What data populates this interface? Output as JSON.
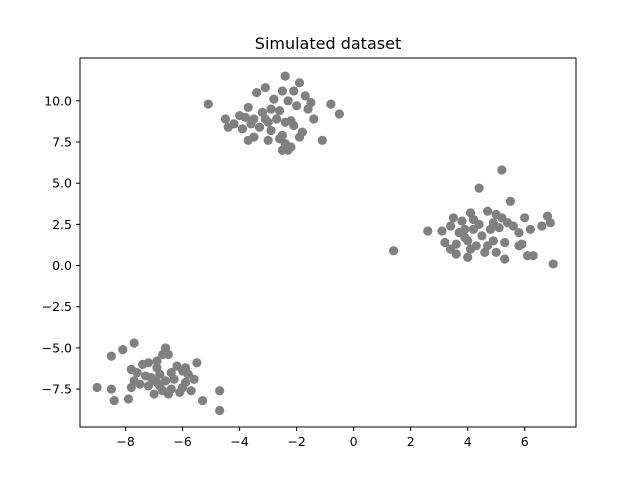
{
  "chart_data": {
    "type": "scatter",
    "title": "Simulated dataset",
    "xlabel": "",
    "ylabel": "",
    "xlim": [
      -9.6,
      7.8
    ],
    "ylim": [
      -9.8,
      12.6
    ],
    "xticks": [
      -8,
      -6,
      -4,
      -2,
      0,
      2,
      4,
      6
    ],
    "xtick_labels": [
      "−8",
      "−6",
      "−4",
      "−2",
      "0",
      "2",
      "4",
      "6"
    ],
    "yticks": [
      -7.5,
      -5.0,
      -2.5,
      0.0,
      2.5,
      5.0,
      7.5,
      10.0
    ],
    "ytick_labels": [
      "−7.5",
      "−5.0",
      "−2.5",
      "0.0",
      "2.5",
      "5.0",
      "7.5",
      "10.0"
    ],
    "grid": false,
    "marker_color": "#808080",
    "points": [
      [
        -5.1,
        9.8
      ],
      [
        -2.4,
        11.5
      ],
      [
        -1.9,
        11.1
      ],
      [
        -3.1,
        10.8
      ],
      [
        -2.5,
        10.6
      ],
      [
        -3.4,
        10.5
      ],
      [
        -2.1,
        10.6
      ],
      [
        -1.7,
        10.3
      ],
      [
        -2.8,
        10.1
      ],
      [
        -2.3,
        10.0
      ],
      [
        -1.5,
        9.9
      ],
      [
        -0.8,
        9.8
      ],
      [
        -3.7,
        9.6
      ],
      [
        -2.9,
        9.5
      ],
      [
        -2.6,
        9.4
      ],
      [
        -2.0,
        9.7
      ],
      [
        -1.6,
        9.5
      ],
      [
        -3.2,
        9.3
      ],
      [
        -0.5,
        9.2
      ],
      [
        -4.0,
        9.1
      ],
      [
        -3.8,
        9.0
      ],
      [
        -4.5,
        8.9
      ],
      [
        -3.5,
        8.9
      ],
      [
        -2.7,
        8.9
      ],
      [
        -2.2,
        8.8
      ],
      [
        -3.0,
        8.7
      ],
      [
        -2.4,
        8.7
      ],
      [
        -1.4,
        8.9
      ],
      [
        -4.2,
        8.6
      ],
      [
        -3.6,
        8.6
      ],
      [
        -2.1,
        8.5
      ],
      [
        -4.4,
        8.4
      ],
      [
        -3.9,
        8.3
      ],
      [
        -3.3,
        8.4
      ],
      [
        -2.9,
        8.2
      ],
      [
        -1.8,
        8.1
      ],
      [
        -2.5,
        7.9
      ],
      [
        -3.5,
        7.8
      ],
      [
        -2.6,
        7.7
      ],
      [
        -1.9,
        7.8
      ],
      [
        -3.0,
        7.6
      ],
      [
        -3.7,
        7.6
      ],
      [
        -1.1,
        7.6
      ],
      [
        -2.4,
        7.4
      ],
      [
        -2.2,
        7.2
      ],
      [
        -2.5,
        7.0
      ],
      [
        -2.3,
        7.0
      ],
      [
        -3.1,
        8.9
      ],
      [
        5.2,
        5.8
      ],
      [
        4.4,
        4.7
      ],
      [
        5.5,
        3.9
      ],
      [
        4.7,
        3.3
      ],
      [
        5.0,
        3.1
      ],
      [
        4.1,
        3.2
      ],
      [
        6.0,
        2.9
      ],
      [
        6.8,
        3.0
      ],
      [
        3.5,
        2.9
      ],
      [
        3.8,
        2.7
      ],
      [
        4.2,
        2.8
      ],
      [
        4.9,
        2.6
      ],
      [
        5.2,
        2.9
      ],
      [
        5.4,
        2.6
      ],
      [
        3.4,
        2.4
      ],
      [
        3.9,
        2.2
      ],
      [
        4.4,
        2.5
      ],
      [
        5.6,
        2.4
      ],
      [
        6.6,
        2.4
      ],
      [
        6.9,
        2.6
      ],
      [
        2.6,
        2.1
      ],
      [
        3.1,
        2.1
      ],
      [
        3.7,
        2.0
      ],
      [
        4.2,
        2.2
      ],
      [
        4.8,
        2.2
      ],
      [
        5.1,
        2.3
      ],
      [
        5.8,
        2.0
      ],
      [
        6.2,
        2.2
      ],
      [
        3.9,
        1.7
      ],
      [
        4.5,
        1.8
      ],
      [
        4.0,
        1.5
      ],
      [
        4.9,
        1.5
      ],
      [
        3.2,
        1.4
      ],
      [
        3.6,
        1.3
      ],
      [
        4.3,
        1.2
      ],
      [
        4.7,
        1.2
      ],
      [
        5.3,
        1.4
      ],
      [
        5.9,
        1.3
      ],
      [
        3.4,
        1.0
      ],
      [
        4.1,
        1.0
      ],
      [
        4.6,
        0.8
      ],
      [
        5.0,
        0.8
      ],
      [
        5.8,
        1.2
      ],
      [
        3.6,
        0.7
      ],
      [
        4.0,
        0.5
      ],
      [
        5.3,
        0.4
      ],
      [
        6.1,
        0.6
      ],
      [
        6.3,
        0.6
      ],
      [
        1.4,
        0.9
      ],
      [
        7.0,
        0.1
      ],
      [
        -7.7,
        -4.7
      ],
      [
        -8.1,
        -5.1
      ],
      [
        -8.5,
        -5.5
      ],
      [
        -6.6,
        -5.0
      ],
      [
        -6.5,
        -5.4
      ],
      [
        -6.7,
        -5.4
      ],
      [
        -7.2,
        -5.9
      ],
      [
        -6.9,
        -5.8
      ],
      [
        -7.4,
        -6.0
      ],
      [
        -5.5,
        -5.9
      ],
      [
        -7.8,
        -6.3
      ],
      [
        -7.6,
        -6.5
      ],
      [
        -6.9,
        -6.2
      ],
      [
        -6.2,
        -6.1
      ],
      [
        -5.9,
        -6.2
      ],
      [
        -7.3,
        -6.7
      ],
      [
        -7.1,
        -6.8
      ],
      [
        -6.8,
        -6.6
      ],
      [
        -6.4,
        -6.5
      ],
      [
        -6.0,
        -6.4
      ],
      [
        -5.8,
        -6.6
      ],
      [
        -7.7,
        -7.0
      ],
      [
        -7.5,
        -7.2
      ],
      [
        -7.0,
        -7.0
      ],
      [
        -6.6,
        -7.0
      ],
      [
        -6.3,
        -6.9
      ],
      [
        -5.9,
        -7.1
      ],
      [
        -5.6,
        -6.9
      ],
      [
        -7.8,
        -7.4
      ],
      [
        -7.2,
        -7.3
      ],
      [
        -6.8,
        -7.3
      ],
      [
        -6.4,
        -7.5
      ],
      [
        -6.0,
        -7.4
      ],
      [
        -5.7,
        -7.6
      ],
      [
        -6.7,
        -7.6
      ],
      [
        -7.0,
        -7.8
      ],
      [
        -6.5,
        -7.8
      ],
      [
        -9.0,
        -7.4
      ],
      [
        -8.5,
        -7.5
      ],
      [
        -4.7,
        -7.6
      ],
      [
        -8.4,
        -8.2
      ],
      [
        -7.9,
        -8.1
      ],
      [
        -5.3,
        -8.2
      ],
      [
        -4.7,
        -8.8
      ],
      [
        -6.9,
        -7.1
      ],
      [
        -6.1,
        -7.7
      ]
    ]
  }
}
